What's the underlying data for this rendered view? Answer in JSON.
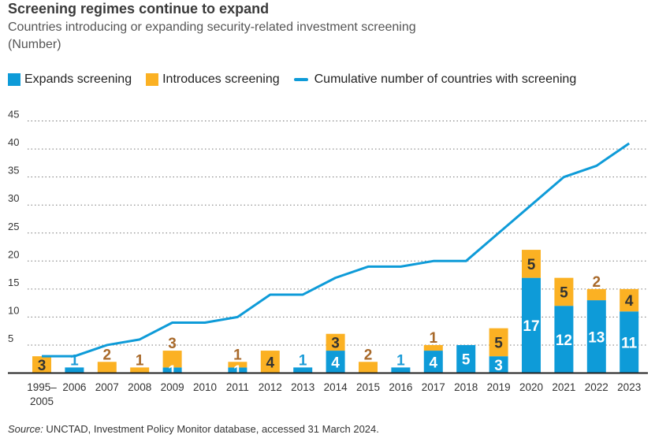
{
  "chart_data": {
    "type": "bar",
    "stacked": true,
    "title": "Screening regimes continue to expand",
    "subtitle": "Countries introducing or expanding security-related investment screening",
    "unit_note": "(Number)",
    "categories": [
      "1995–2005",
      "2006",
      "2007",
      "2008",
      "2009",
      "2010",
      "2011",
      "2012",
      "2013",
      "2014",
      "2015",
      "2016",
      "2017",
      "2018",
      "2019",
      "2020",
      "2021",
      "2022",
      "2023"
    ],
    "series": [
      {
        "name": "Expands screening",
        "type": "bar",
        "color": "#0e9bd8",
        "values": [
          0,
          1,
          0,
          0,
          1,
          0,
          1,
          0,
          1,
          4,
          0,
          1,
          4,
          5,
          3,
          17,
          12,
          13,
          11
        ]
      },
      {
        "name": "Introduces screening",
        "type": "bar",
        "color": "#fbb123",
        "values": [
          3,
          0,
          2,
          1,
          3,
          0,
          1,
          4,
          0,
          3,
          2,
          0,
          1,
          0,
          5,
          5,
          5,
          2,
          4
        ]
      },
      {
        "name": "Cumulative number of countries with screening",
        "type": "line",
        "color": "#0e9bd8",
        "values": [
          3,
          3,
          5,
          6,
          9,
          9,
          10,
          14,
          14,
          17,
          19,
          19,
          20,
          20,
          25,
          30,
          35,
          37,
          41
        ]
      }
    ],
    "yticks": [
      5,
      10,
      15,
      20,
      25,
      30,
      35,
      40,
      45
    ],
    "ylim": [
      0,
      45
    ],
    "grid": true,
    "legend": "top-left",
    "xlabel": "",
    "ylabel": ""
  },
  "source": {
    "label": "Source:",
    "text": " UNCTAD, Investment Policy Monitor database, accessed 31 March 2024."
  }
}
